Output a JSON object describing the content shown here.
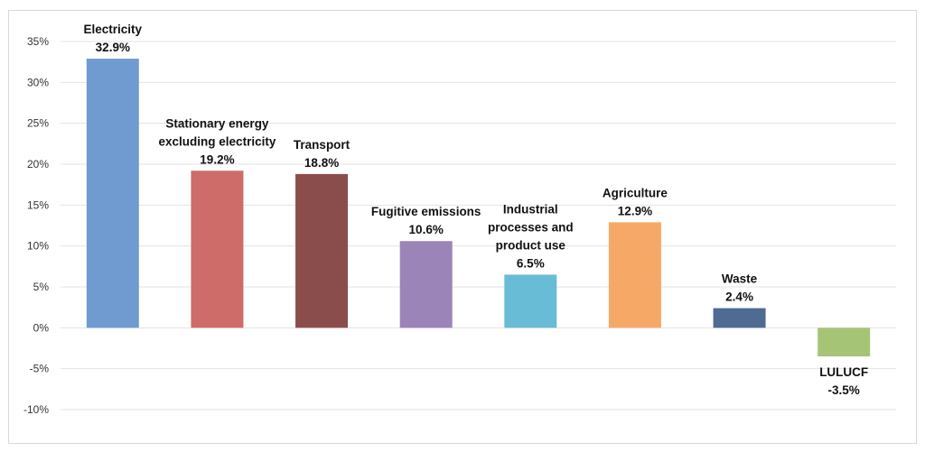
{
  "chart_data": {
    "type": "bar",
    "categories": [
      [
        "Electricity"
      ],
      [
        "Stationary energy",
        "excluding electricity"
      ],
      [
        "Transport"
      ],
      [
        "Fugitive emissions"
      ],
      [
        "Industrial",
        "processes and",
        "product use"
      ],
      [
        "Agriculture"
      ],
      [
        "Waste"
      ],
      [
        "LULUCF"
      ]
    ],
    "values": [
      32.9,
      19.2,
      18.8,
      10.6,
      6.5,
      12.9,
      2.4,
      -3.5
    ],
    "value_labels": [
      "32.9%",
      "19.2%",
      "18.8%",
      "10.6%",
      "6.5%",
      "12.9%",
      "2.4%",
      "-3.5%"
    ],
    "colors": [
      "#6f9bd1",
      "#cd6c69",
      "#8b4d4b",
      "#9b84b8",
      "#69bcd6",
      "#f6a967",
      "#4f6b92",
      "#a6c476"
    ],
    "y_ticks": [
      "-10%",
      "-5%",
      "0%",
      "5%",
      "10%",
      "15%",
      "20%",
      "25%",
      "30%",
      "35%"
    ],
    "ylim": [
      -10,
      35
    ],
    "grid": true,
    "title": "",
    "xlabel": "",
    "ylabel": ""
  }
}
